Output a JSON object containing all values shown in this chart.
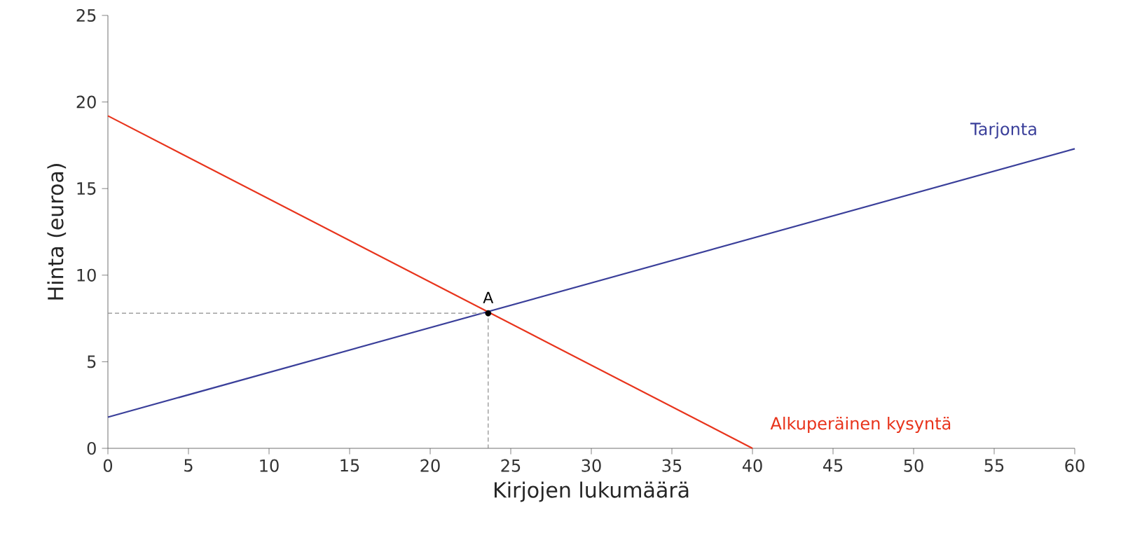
{
  "chart_data": {
    "type": "line",
    "xlabel": "Kirjojen lukumäärä",
    "ylabel": "Hinta (euroa)",
    "xlim": [
      0,
      60
    ],
    "ylim": [
      0,
      25
    ],
    "xticks": [
      0,
      5,
      10,
      15,
      20,
      25,
      30,
      35,
      40,
      45,
      50,
      55,
      60
    ],
    "yticks": [
      0,
      5,
      10,
      15,
      20,
      25
    ],
    "grid": false,
    "marker": "none",
    "line_style": "solid",
    "series": [
      {
        "name": "Tarjonta",
        "color": "#3a3f9a",
        "x": [
          0,
          60
        ],
        "values": [
          1.8,
          17.3
        ]
      },
      {
        "name": "Alkuperäinen kysyntä",
        "color": "#e8341c",
        "x": [
          0,
          40
        ],
        "values": [
          19.2,
          0
        ]
      },
      {
        "color": "#8c8c8c",
        "line_style": "dashed",
        "x": [
          0,
          23.6,
          23.6
        ],
        "values": [
          7.8,
          7.8,
          0
        ]
      },
      {
        "type": "scatter",
        "marker": "circle",
        "color": "#000000",
        "x": [
          23.6
        ],
        "values": [
          7.8
        ]
      }
    ],
    "annotations": [
      {
        "text": "A",
        "x": 23.6,
        "y": 7.8
      }
    ]
  }
}
